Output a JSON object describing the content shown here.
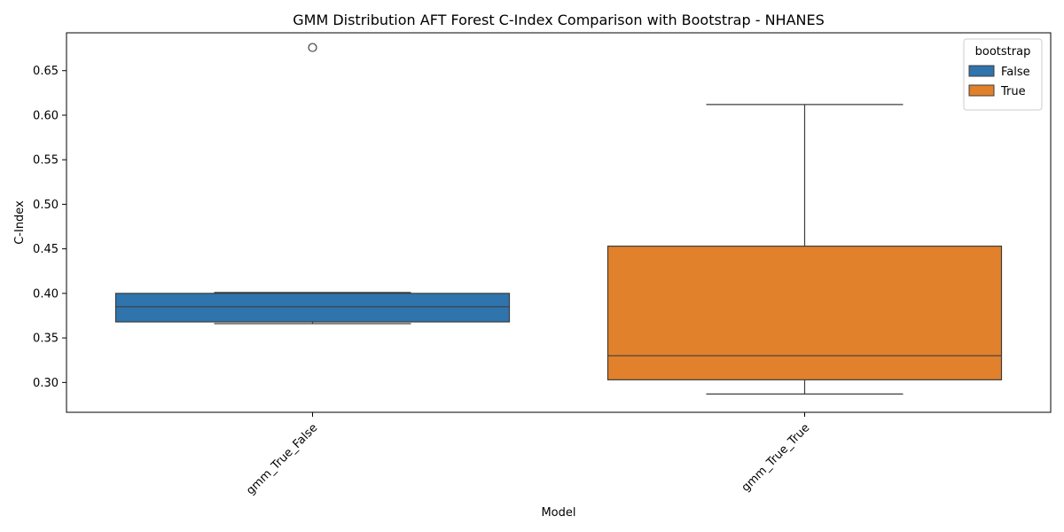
{
  "chart_data": {
    "type": "box",
    "title": "GMM Distribution AFT Forest C-Index Comparison with Bootstrap - NHANES",
    "xlabel": "Model",
    "ylabel": "C-Index",
    "ylim": [
      0.2665,
      0.6925
    ],
    "yticks": [
      0.3,
      0.35,
      0.4,
      0.45,
      0.5,
      0.55,
      0.6,
      0.65
    ],
    "ytick_labels": [
      "0.30",
      "0.35",
      "0.40",
      "0.45",
      "0.50",
      "0.55",
      "0.60",
      "0.65"
    ],
    "categories": [
      "gmm_True_False",
      "gmm_True_True"
    ],
    "legend": {
      "title": "bootstrap",
      "position": "top-right",
      "entries": [
        {
          "label": "False",
          "color": "#2f74ad"
        },
        {
          "label": "True",
          "color": "#e1812c"
        }
      ]
    },
    "series": [
      {
        "name": "False",
        "category": "gmm_True_False",
        "color": "#2f74ad",
        "whisker_low": 0.366,
        "q1": 0.368,
        "median": 0.385,
        "q3": 0.4,
        "whisker_high": 0.401,
        "outliers": [
          0.676
        ]
      },
      {
        "name": "True",
        "category": "gmm_True_True",
        "color": "#e1812c",
        "whisker_low": 0.287,
        "q1": 0.303,
        "median": 0.33,
        "q3": 0.453,
        "whisker_high": 0.612,
        "outliers": []
      }
    ]
  }
}
